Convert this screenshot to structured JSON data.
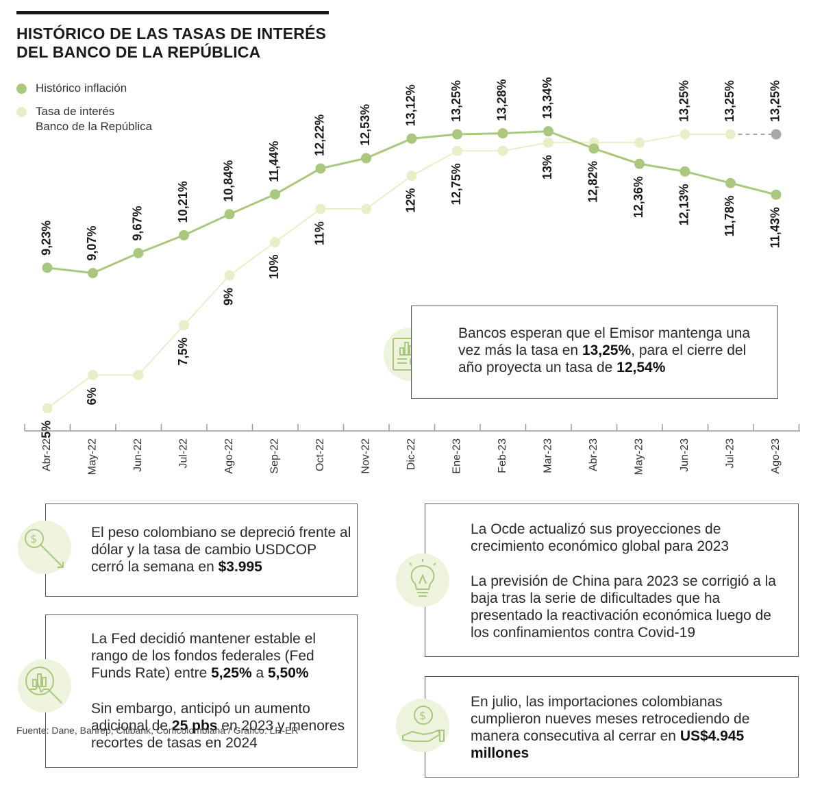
{
  "title": {
    "line1": "HISTÓRICO DE LAS TASAS DE INTERÉS",
    "line2": "DEL BANCO DE LA REPÚBLICA"
  },
  "legend": {
    "inflation": "Histórico inflación",
    "rate_line1": "Tasa de interés",
    "rate_line2": "Banco de la República"
  },
  "colors": {
    "inflation": "#a9c77d",
    "rate": "#e6efc8",
    "forecast": "#a8a8a8",
    "icon_bg": "#eef3dd",
    "icon_stroke": "#a9c77d"
  },
  "chart_data": {
    "type": "line",
    "categories": [
      "Abr-22",
      "May-22",
      "Jun-22",
      "Jul-22",
      "Ago-22",
      "Sep-22",
      "Oct-22",
      "Nov-22",
      "Dic-22",
      "Ene-23",
      "Feb-23",
      "Mar-23",
      "Abr-23",
      "May-23",
      "Jun-23",
      "Jul-23",
      "Ago-23"
    ],
    "series": [
      {
        "name": "Histórico inflación",
        "values": [
          9.23,
          9.07,
          9.67,
          10.21,
          10.84,
          11.44,
          12.22,
          12.53,
          13.12,
          13.25,
          13.28,
          13.34,
          12.82,
          12.36,
          12.13,
          11.78,
          11.43
        ],
        "labels": [
          "9,23%",
          "9,07%",
          "9,67%",
          "10,21%",
          "10,84%",
          "11,44%",
          "12,22%",
          "12,53%",
          "13,12%",
          "13,25%",
          "13,28%",
          "13,34%",
          "12,82%",
          "12,36%",
          "12,13%",
          "11,78%",
          "11,43%"
        ]
      },
      {
        "name": "Tasa de interés Banco de la República",
        "values": [
          5,
          6,
          6,
          7.5,
          9,
          10,
          11,
          11,
          12,
          12.75,
          12.75,
          13,
          13,
          13,
          13.25,
          13.25,
          13.25
        ],
        "labels": [
          "5%",
          "6%",
          "",
          "7,5%",
          "9%",
          "10%",
          "11%",
          "",
          "12%",
          "12,75%",
          "",
          "13%",
          "",
          "",
          "13,25%",
          "13,25%",
          "13,25%"
        ],
        "forecast_from_index": 15
      }
    ],
    "ylim": [
      4.5,
      14.2
    ],
    "grid": false,
    "legend_position": "top-left"
  },
  "boxes": {
    "banks": {
      "t1": "Bancos esperan que el Emisor mantenga una vez más la tasa en ",
      "b1": "13,25%",
      "t2": ", para el cierre del año proyecta un tasa de ",
      "b2": "12,54%"
    },
    "peso": {
      "t1": "El peso colombiano se depreció frente al dólar y la tasa de cambio USDCOP cerró la semana en ",
      "b1": "$3.995"
    },
    "fed": {
      "t1": "La Fed decidió mantener estable el rango de los fondos federales (Fed Funds Rate) entre ",
      "b1": "5,25%",
      "t2": " a ",
      "b2": "5,50%",
      "t3": "Sin embargo, anticipó un aumento adicional de ",
      "b3": "25 pbs",
      "t4": " en 2023 y menores recortes de tasas en 2024"
    },
    "ocde": {
      "p1": "La Ocde actualizó sus proyecciones de crecimiento económico global para 2023",
      "p2": "La previsión de China para 2023 se corrigió a la baja tras la serie de dificultades que ha presentado la reactivación económica luego de los confinamientos contra Covid-19"
    },
    "imports": {
      "t1": "En julio, las importaciones colombianas cumplieron nueves meses retrocediendo de manera consecutiva al cerrar en ",
      "b1": "US$4.945 millones"
    }
  },
  "icons": {
    "banks": "report-chart-magnifier-icon",
    "peso": "dollar-magnifier-down-arrow-icon",
    "fed": "chart-magnifier-icon",
    "ocde": "lightbulb-icon",
    "imports": "dollar-hand-icon"
  },
  "source": "Fuente: Dane, Banrep, Citibank, Corficolombiana / Gráfico: LR-ER"
}
